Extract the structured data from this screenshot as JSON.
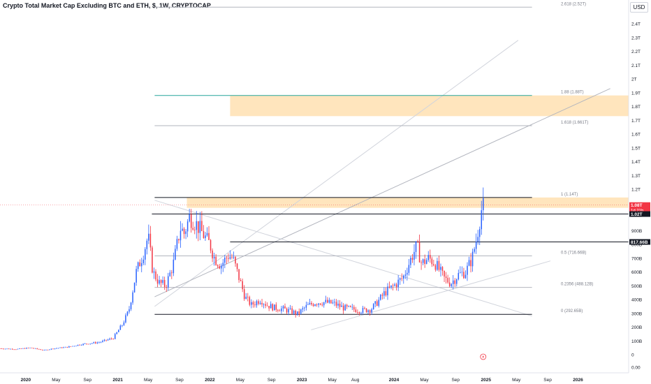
{
  "chart_data": {
    "type": "candlestick",
    "title": "Crypto Total Market Cap Excluding BTC and ETH, $, 1W, CRYPTOCAP",
    "currency": "USD",
    "y_axis": {
      "unit": "USD",
      "ticks": [
        {
          "v": 0,
          "label": "0"
        },
        {
          "v": 0.1,
          "label": "100B"
        },
        {
          "v": 0.2,
          "label": "200B"
        },
        {
          "v": 0.3,
          "label": "300B"
        },
        {
          "v": 0.4,
          "label": "400B"
        },
        {
          "v": 0.5,
          "label": "500B"
        },
        {
          "v": 0.6,
          "label": "600B"
        },
        {
          "v": 0.7,
          "label": "700B"
        },
        {
          "v": 0.8,
          "label": "800B"
        },
        {
          "v": 0.9,
          "label": "900B"
        },
        {
          "v": 1.2,
          "label": "1.2T"
        },
        {
          "v": 1.3,
          "label": "1.3T"
        },
        {
          "v": 1.4,
          "label": "1.4T"
        },
        {
          "v": 1.5,
          "label": "1.5T"
        },
        {
          "v": 1.6,
          "label": "1.6T"
        },
        {
          "v": 1.7,
          "label": "1.7T"
        },
        {
          "v": 1.8,
          "label": "1.8T"
        },
        {
          "v": 1.9,
          "label": "1.9T"
        },
        {
          "v": 2.0,
          "label": "2T"
        },
        {
          "v": 2.1,
          "label": "2.1T"
        },
        {
          "v": 2.2,
          "label": "2.2T"
        },
        {
          "v": 2.3,
          "label": "2.3T"
        },
        {
          "v": 2.4,
          "label": "2.4T"
        }
      ],
      "bottom_label": "0.00",
      "range": [
        -0.1,
        2.5
      ]
    },
    "x_axis": {
      "ticks": [
        {
          "t": 2020.0,
          "label": "2020"
        },
        {
          "t": 2020.33,
          "label": "May"
        },
        {
          "t": 2020.67,
          "label": "Sep"
        },
        {
          "t": 2021.0,
          "label": "2021"
        },
        {
          "t": 2021.33,
          "label": "May"
        },
        {
          "t": 2021.67,
          "label": "Sep"
        },
        {
          "t": 2022.0,
          "label": "2022"
        },
        {
          "t": 2022.33,
          "label": "May"
        },
        {
          "t": 2022.67,
          "label": "Sep"
        },
        {
          "t": 2023.0,
          "label": "2023"
        },
        {
          "t": 2023.33,
          "label": "May"
        },
        {
          "t": 2023.58,
          "label": "Aug"
        },
        {
          "t": 2024.0,
          "label": "2024"
        },
        {
          "t": 2024.33,
          "label": "May"
        },
        {
          "t": 2024.67,
          "label": "Sep"
        },
        {
          "t": 2025.0,
          "label": "2025"
        },
        {
          "t": 2025.33,
          "label": "May"
        },
        {
          "t": 2025.67,
          "label": "Sep"
        },
        {
          "t": 2026.0,
          "label": "2026"
        }
      ],
      "range": [
        2019.72,
        2026.55
      ]
    },
    "price_path": [
      [
        2019.72,
        0.045
      ],
      [
        2019.9,
        0.04
      ],
      [
        2020.05,
        0.05
      ],
      [
        2020.2,
        0.032
      ],
      [
        2020.3,
        0.045
      ],
      [
        2020.45,
        0.055
      ],
      [
        2020.6,
        0.075
      ],
      [
        2020.8,
        0.09
      ],
      [
        2020.95,
        0.12
      ],
      [
        2021.05,
        0.22
      ],
      [
        2021.12,
        0.32
      ],
      [
        2021.2,
        0.6
      ],
      [
        2021.27,
        0.72
      ],
      [
        2021.33,
        0.86
      ],
      [
        2021.38,
        0.6
      ],
      [
        2021.45,
        0.52
      ],
      [
        2021.52,
        0.5
      ],
      [
        2021.6,
        0.65
      ],
      [
        2021.68,
        0.92
      ],
      [
        2021.72,
        0.88
      ],
      [
        2021.78,
        1.0
      ],
      [
        2021.85,
        0.95
      ],
      [
        2021.92,
        0.88
      ],
      [
        2022.0,
        0.8
      ],
      [
        2022.05,
        0.7
      ],
      [
        2022.12,
        0.65
      ],
      [
        2022.2,
        0.72
      ],
      [
        2022.25,
        0.7
      ],
      [
        2022.32,
        0.55
      ],
      [
        2022.38,
        0.42
      ],
      [
        2022.45,
        0.36
      ],
      [
        2022.55,
        0.4
      ],
      [
        2022.62,
        0.36
      ],
      [
        2022.7,
        0.34
      ],
      [
        2022.8,
        0.33
      ],
      [
        2022.9,
        0.31
      ],
      [
        2022.95,
        0.295
      ],
      [
        2023.05,
        0.35
      ],
      [
        2023.15,
        0.38
      ],
      [
        2023.25,
        0.38
      ],
      [
        2023.35,
        0.37
      ],
      [
        2023.45,
        0.34
      ],
      [
        2023.55,
        0.33
      ],
      [
        2023.65,
        0.32
      ],
      [
        2023.75,
        0.33
      ],
      [
        2023.82,
        0.38
      ],
      [
        2023.9,
        0.45
      ],
      [
        2024.0,
        0.5
      ],
      [
        2024.1,
        0.56
      ],
      [
        2024.2,
        0.72
      ],
      [
        2024.25,
        0.79
      ],
      [
        2024.3,
        0.66
      ],
      [
        2024.38,
        0.7
      ],
      [
        2024.45,
        0.66
      ],
      [
        2024.55,
        0.55
      ],
      [
        2024.62,
        0.52
      ],
      [
        2024.7,
        0.58
      ],
      [
        2024.78,
        0.6
      ],
      [
        2024.85,
        0.7
      ],
      [
        2024.9,
        0.85
      ],
      [
        2024.95,
        1.05
      ],
      [
        2024.98,
        1.08
      ]
    ],
    "horizontal_levels": [
      {
        "v": 1.14,
        "t0": 2021.4,
        "t1": 2025.5,
        "color": "#131722"
      },
      {
        "v": 1.02,
        "t0": 2021.37,
        "t1": 2026.55,
        "color": "#131722"
      },
      {
        "v": 0.8176,
        "t0": 2022.22,
        "t1": 2026.55,
        "color": "#131722"
      },
      {
        "v": 0.29265,
        "t0": 2021.4,
        "t1": 2025.5,
        "color": "#131722"
      },
      {
        "v": 1.88,
        "t0": 2021.4,
        "t1": 2025.5,
        "color": "#26a69a"
      },
      {
        "v": 1.661,
        "t0": 2021.4,
        "t1": 2025.5,
        "color": "#b2b5be"
      },
      {
        "v": 2.52,
        "t0": 2021.4,
        "t1": 2025.5,
        "color": "#b2b5be"
      },
      {
        "v": 0.7166,
        "t0": 2021.4,
        "t1": 2025.5,
        "color": "#b2b5be"
      },
      {
        "v": 0.4881,
        "t0": 2021.4,
        "t1": 2025.5,
        "color": "#b2b5be"
      }
    ],
    "level_labels": [
      {
        "v": 2.52,
        "label": "2.618 (2.52T)"
      },
      {
        "v": 1.88,
        "label": "1.88 (1.88T)"
      },
      {
        "v": 1.661,
        "label": "1.618 (1.661T)"
      },
      {
        "v": 1.14,
        "label": "1 (1.14T)"
      },
      {
        "v": 0.7166,
        "label": "0.5 (716.66B)"
      },
      {
        "v": 0.4881,
        "label": "0.2356 (488.12B)"
      },
      {
        "v": 0.29265,
        "label": "0 (292.65B)"
      }
    ],
    "zones": [
      {
        "t0": 2022.22,
        "t1": 2026.55,
        "v0": 1.73,
        "v1": 1.88,
        "color": "#ffe0b2"
      },
      {
        "t0": 2021.75,
        "t1": 2026.55,
        "v0": 1.065,
        "v1": 1.14,
        "color": "#ffe0b2"
      }
    ],
    "trend_lines": [
      {
        "t0": 2021.4,
        "v0": 0.35,
        "t1": 2025.35,
        "v1": 2.28,
        "color": "#d1d4dc"
      },
      {
        "t0": 2021.4,
        "v0": 0.42,
        "t1": 2026.35,
        "v1": 1.93,
        "color": "#b2b5be"
      },
      {
        "t0": 2021.4,
        "v0": 1.12,
        "t1": 2025.5,
        "v1": 0.28,
        "color": "#d1d4dc"
      },
      {
        "t0": 2023.1,
        "v0": 0.18,
        "t1": 2025.7,
        "v1": 0.68,
        "color": "#d1d4dc"
      }
    ],
    "price_tags": [
      {
        "v": 1.085,
        "label": "1.08T",
        "sub": "1d 21h",
        "color": "#f23645",
        "text": "#ffffff"
      },
      {
        "v": 1.02,
        "label": "1.02T",
        "color": "#131722",
        "text": "#ffffff"
      },
      {
        "v": 0.8176,
        "label": "817.66B",
        "color": "#131722",
        "text": "#ffffff"
      }
    ],
    "bull_color": "#2962ff",
    "bear_color": "#f23645",
    "grid": false
  }
}
